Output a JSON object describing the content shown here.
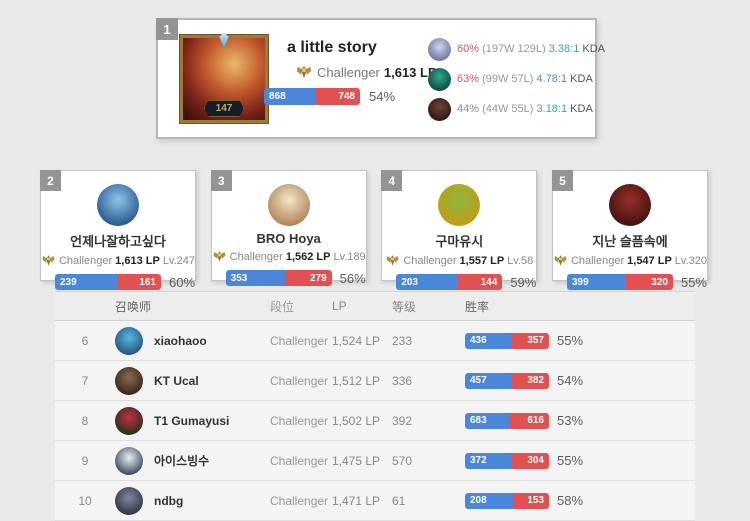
{
  "colors": {
    "bar_blue": "#4a87d8",
    "bar_red": "#e25152"
  },
  "top_player": {
    "rank": "1",
    "avatar_level": "147",
    "name": "a little story",
    "tier": "Challenger",
    "lp": "1,613 LP",
    "wins": "868",
    "losses": "748",
    "blue_pct": 53.7,
    "winrate": "54%",
    "champions": [
      {
        "icon_colors": [
          "#cdd3ea",
          "#666b99"
        ],
        "winrate": "60%",
        "winrate_color": "#cf5a5a",
        "record": "(197W 129L)",
        "kda": "3.38:1",
        "kda_color": "#3aa79f",
        "kda_label": "KDA"
      },
      {
        "icon_colors": [
          "#2fa98c",
          "#0d3d3a"
        ],
        "winrate": "63%",
        "winrate_color": "#cf5a5a",
        "record": "(99W 57L)",
        "kda": "4.78:1",
        "kda_color": "#5b7fd0",
        "kda_label": "KDA"
      },
      {
        "icon_colors": [
          "#6e4436",
          "#241312"
        ],
        "winrate": "44%",
        "winrate_color": "#8a8a8a",
        "record": "(44W 55L)",
        "kda": "3.18:1",
        "kda_color": "#3aa79f",
        "kda_label": "KDA"
      }
    ]
  },
  "cards": [
    {
      "rank": "2",
      "name": "언제나잘하고싶다",
      "tier": "Challenger",
      "lp": "1,613 LP",
      "level": "Lv.247",
      "wins": "239",
      "losses": "161",
      "blue_pct": 59.8,
      "winrate": "60%",
      "avatar_colors": [
        "#8fc2e8",
        "#1c4e86"
      ]
    },
    {
      "rank": "3",
      "name": "BRO Hoya",
      "tier": "Challenger",
      "lp": "1,562 LP",
      "level": "Lv.189",
      "wins": "353",
      "losses": "279",
      "blue_pct": 55.9,
      "winrate": "56%",
      "avatar_colors": [
        "#f5e6c9",
        "#a8784a"
      ]
    },
    {
      "rank": "4",
      "name": "구마유시",
      "tier": "Challenger",
      "lp": "1,557 LP",
      "level": "Lv.58",
      "wins": "203",
      "losses": "144",
      "blue_pct": 58.5,
      "winrate": "59%",
      "avatar_colors": [
        "#8cb83e",
        "#c8990f"
      ]
    },
    {
      "rank": "5",
      "name": "지난 슬픔속에",
      "tier": "Challenger",
      "lp": "1,547 LP",
      "level": "Lv.320",
      "wins": "399",
      "losses": "320",
      "blue_pct": 55.5,
      "winrate": "55%",
      "avatar_colors": [
        "#973028",
        "#3a0f0c"
      ]
    }
  ],
  "table": {
    "headers": {
      "summoner": "召唤师",
      "tier": "段位",
      "lp": "LP",
      "level": "等级",
      "winrate": "胜率"
    },
    "rows": [
      {
        "rank": "6",
        "name": "xiaohaoo",
        "tier": "Challenger",
        "lp": "1,524 LP",
        "level": "233",
        "wins": "436",
        "losses": "357",
        "blue_pct": 55.0,
        "winrate": "55%",
        "avatar_colors": [
          "#58b7dc",
          "#1f4a78"
        ]
      },
      {
        "rank": "7",
        "name": "KT Ucal",
        "tier": "Challenger",
        "lp": "1,512 LP",
        "level": "336",
        "wins": "457",
        "losses": "382",
        "blue_pct": 54.5,
        "winrate": "54%",
        "avatar_colors": [
          "#8a6a50",
          "#2e1f16"
        ]
      },
      {
        "rank": "8",
        "name": "T1 Gumayusi",
        "tier": "Challenger",
        "lp": "1,502 LP",
        "level": "392",
        "wins": "683",
        "losses": "616",
        "blue_pct": 52.6,
        "winrate": "53%",
        "avatar_colors": [
          "#c23040",
          "#16301a"
        ]
      },
      {
        "rank": "9",
        "name": "아이스빙수",
        "tier": "Challenger",
        "lp": "1,475 LP",
        "level": "570",
        "wins": "372",
        "losses": "304",
        "blue_pct": 55.0,
        "winrate": "55%",
        "avatar_colors": [
          "#e8eef2",
          "#25394e"
        ]
      },
      {
        "rank": "10",
        "name": "ndbg",
        "tier": "Challenger",
        "lp": "1,471 LP",
        "level": "61",
        "wins": "208",
        "losses": "153",
        "blue_pct": 57.6,
        "winrate": "58%",
        "avatar_colors": [
          "#8088a0",
          "#2a2d3a"
        ]
      }
    ]
  }
}
